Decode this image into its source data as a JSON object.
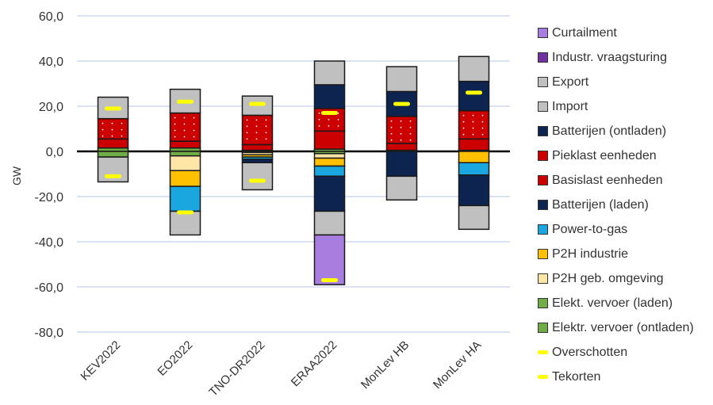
{
  "chart_data": {
    "type": "bar",
    "stacked": true,
    "title": "",
    "xlabel": "",
    "ylabel": "GW",
    "ylim": [
      -80,
      60
    ],
    "yticks": [
      -80,
      -60,
      -40,
      -20,
      0,
      20,
      40,
      60
    ],
    "ytick_labels": [
      "-80,0",
      "-60,0",
      "-40,0",
      "-20,0",
      "0,0",
      "20,0",
      "40,0",
      "60,0"
    ],
    "grid": true,
    "legend_position": "right",
    "categories": [
      "KEV2022",
      "EO2022",
      "TNO-DR2022",
      "ERAA2022",
      "MonLev HB",
      "MonLev HA"
    ],
    "series": [
      {
        "name": "Curtailment",
        "color": "#a87de0",
        "values": [
          0,
          0,
          0,
          -22,
          0,
          0
        ]
      },
      {
        "name": "Industr. vraagsturing",
        "color": "#7030a0",
        "values": [
          0,
          0,
          0,
          0,
          0,
          0
        ]
      },
      {
        "name": "Export",
        "color": "#c0c0c0",
        "values": [
          -11,
          -10.5,
          -12,
          -10.5,
          -10.5,
          -10.5
        ]
      },
      {
        "name": "Import",
        "color": "#c0c0c0",
        "values": [
          9.5,
          10.5,
          8.5,
          10.5,
          11,
          11
        ]
      },
      {
        "name": "Batterijen (ontladen)",
        "color": "#0d2451",
        "values": [
          0,
          0,
          0,
          10.5,
          11,
          13
        ]
      },
      {
        "name": "Pieklast eenheden",
        "color": "#cc0000",
        "values": [
          9,
          12.5,
          13,
          10,
          12,
          12.5
        ]
      },
      {
        "name": "Basislast eenheden",
        "color": "#cc0000",
        "values": [
          4,
          3,
          2.5,
          8,
          3,
          5
        ]
      },
      {
        "name": "Batterijen (laden)",
        "color": "#0d2451",
        "values": [
          0,
          0,
          -1.5,
          -15.5,
          -11,
          -13.5
        ]
      },
      {
        "name": "Power-to-gas",
        "color": "#1aa7e0",
        "values": [
          0,
          -11,
          -1,
          -4.5,
          0,
          -5.5
        ]
      },
      {
        "name": "P2H industrie",
        "color": "#ffc000",
        "values": [
          0,
          -7,
          -1,
          -3.5,
          0,
          -5
        ]
      },
      {
        "name": "P2H geb. omgeving",
        "color": "#ffe6a6",
        "values": [
          0,
          -6.5,
          -1,
          -2,
          0,
          0
        ]
      },
      {
        "name": "Elekt. vervoer (laden)",
        "color": "#70ad47",
        "values": [
          -2.5,
          -2,
          -0.5,
          -1,
          0,
          0
        ]
      },
      {
        "name": "Elektr. vervoer (ontladen)",
        "color": "#70ad47",
        "values": [
          1.5,
          1.5,
          0.5,
          1,
          0.5,
          0.5
        ]
      }
    ],
    "overschotten": {
      "name": "Overschotten",
      "color": "#ffff00",
      "values": [
        -11,
        -27,
        -13,
        -57,
        0,
        0
      ]
    },
    "tekorten": {
      "name": "Tekorten",
      "color": "#ffff00",
      "values": [
        19,
        22,
        21,
        17,
        21,
        26
      ]
    },
    "legend": [
      {
        "name": "Curtailment",
        "color": "#a87de0",
        "marker": "box"
      },
      {
        "name": "Industr. vraagsturing",
        "color": "#7030a0",
        "marker": "box"
      },
      {
        "name": "Export",
        "color": "#c0c0c0",
        "marker": "box"
      },
      {
        "name": "Import",
        "color": "#c0c0c0",
        "marker": "box"
      },
      {
        "name": "Batterijen (ontladen)",
        "color": "#0d2451",
        "marker": "box"
      },
      {
        "name": "Pieklast eenheden",
        "color": "#cc0000",
        "marker": "box"
      },
      {
        "name": "Basislast eenheden",
        "color": "#cc0000",
        "marker": "box"
      },
      {
        "name": "Batterijen (laden)",
        "color": "#0d2451",
        "marker": "box"
      },
      {
        "name": "Power-to-gas",
        "color": "#1aa7e0",
        "marker": "box"
      },
      {
        "name": "P2H industrie",
        "color": "#ffc000",
        "marker": "box"
      },
      {
        "name": "P2H geb. omgeving",
        "color": "#ffe6a6",
        "marker": "box"
      },
      {
        "name": "Elekt. vervoer (laden)",
        "color": "#70ad47",
        "marker": "box"
      },
      {
        "name": "Elektr. vervoer (ontladen)",
        "color": "#70ad47",
        "marker": "box"
      },
      {
        "name": "Overschotten",
        "color": "#ffff00",
        "marker": "line"
      },
      {
        "name": "Tekorten",
        "color": "#ffff00",
        "marker": "line"
      }
    ]
  }
}
